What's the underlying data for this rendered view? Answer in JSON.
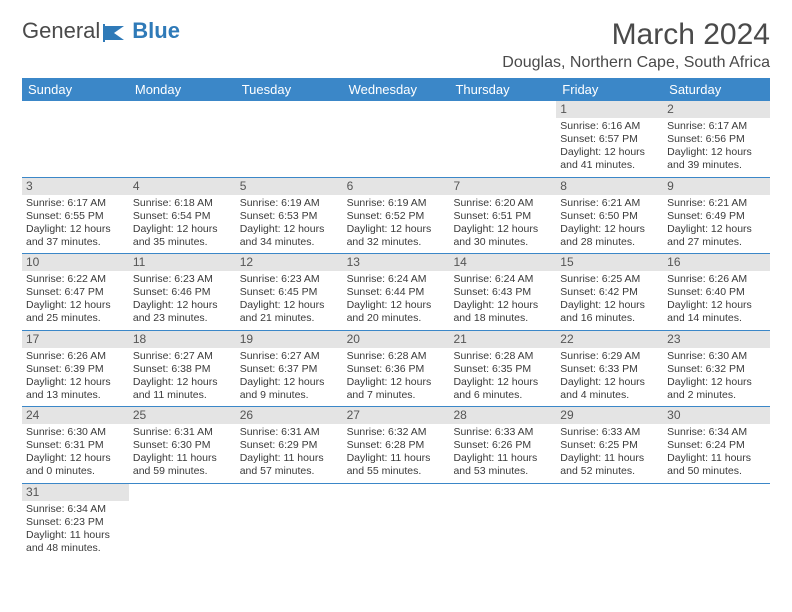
{
  "logo": {
    "text1": "General",
    "text2": "Blue"
  },
  "title": "March 2024",
  "location": "Douglas, Northern Cape, South Africa",
  "colors": {
    "header_bg": "#3b87c8",
    "header_text": "#ffffff",
    "daybar_bg": "#e4e4e4",
    "row_border": "#3b87c8"
  },
  "weekdays": [
    "Sunday",
    "Monday",
    "Tuesday",
    "Wednesday",
    "Thursday",
    "Friday",
    "Saturday"
  ],
  "weeks": [
    [
      null,
      null,
      null,
      null,
      null,
      {
        "n": "1",
        "sr": "Sunrise: 6:16 AM",
        "ss": "Sunset: 6:57 PM",
        "dl": "Daylight: 12 hours and 41 minutes."
      },
      {
        "n": "2",
        "sr": "Sunrise: 6:17 AM",
        "ss": "Sunset: 6:56 PM",
        "dl": "Daylight: 12 hours and 39 minutes."
      }
    ],
    [
      {
        "n": "3",
        "sr": "Sunrise: 6:17 AM",
        "ss": "Sunset: 6:55 PM",
        "dl": "Daylight: 12 hours and 37 minutes."
      },
      {
        "n": "4",
        "sr": "Sunrise: 6:18 AM",
        "ss": "Sunset: 6:54 PM",
        "dl": "Daylight: 12 hours and 35 minutes."
      },
      {
        "n": "5",
        "sr": "Sunrise: 6:19 AM",
        "ss": "Sunset: 6:53 PM",
        "dl": "Daylight: 12 hours and 34 minutes."
      },
      {
        "n": "6",
        "sr": "Sunrise: 6:19 AM",
        "ss": "Sunset: 6:52 PM",
        "dl": "Daylight: 12 hours and 32 minutes."
      },
      {
        "n": "7",
        "sr": "Sunrise: 6:20 AM",
        "ss": "Sunset: 6:51 PM",
        "dl": "Daylight: 12 hours and 30 minutes."
      },
      {
        "n": "8",
        "sr": "Sunrise: 6:21 AM",
        "ss": "Sunset: 6:50 PM",
        "dl": "Daylight: 12 hours and 28 minutes."
      },
      {
        "n": "9",
        "sr": "Sunrise: 6:21 AM",
        "ss": "Sunset: 6:49 PM",
        "dl": "Daylight: 12 hours and 27 minutes."
      }
    ],
    [
      {
        "n": "10",
        "sr": "Sunrise: 6:22 AM",
        "ss": "Sunset: 6:47 PM",
        "dl": "Daylight: 12 hours and 25 minutes."
      },
      {
        "n": "11",
        "sr": "Sunrise: 6:23 AM",
        "ss": "Sunset: 6:46 PM",
        "dl": "Daylight: 12 hours and 23 minutes."
      },
      {
        "n": "12",
        "sr": "Sunrise: 6:23 AM",
        "ss": "Sunset: 6:45 PM",
        "dl": "Daylight: 12 hours and 21 minutes."
      },
      {
        "n": "13",
        "sr": "Sunrise: 6:24 AM",
        "ss": "Sunset: 6:44 PM",
        "dl": "Daylight: 12 hours and 20 minutes."
      },
      {
        "n": "14",
        "sr": "Sunrise: 6:24 AM",
        "ss": "Sunset: 6:43 PM",
        "dl": "Daylight: 12 hours and 18 minutes."
      },
      {
        "n": "15",
        "sr": "Sunrise: 6:25 AM",
        "ss": "Sunset: 6:42 PM",
        "dl": "Daylight: 12 hours and 16 minutes."
      },
      {
        "n": "16",
        "sr": "Sunrise: 6:26 AM",
        "ss": "Sunset: 6:40 PM",
        "dl": "Daylight: 12 hours and 14 minutes."
      }
    ],
    [
      {
        "n": "17",
        "sr": "Sunrise: 6:26 AM",
        "ss": "Sunset: 6:39 PM",
        "dl": "Daylight: 12 hours and 13 minutes."
      },
      {
        "n": "18",
        "sr": "Sunrise: 6:27 AM",
        "ss": "Sunset: 6:38 PM",
        "dl": "Daylight: 12 hours and 11 minutes."
      },
      {
        "n": "19",
        "sr": "Sunrise: 6:27 AM",
        "ss": "Sunset: 6:37 PM",
        "dl": "Daylight: 12 hours and 9 minutes."
      },
      {
        "n": "20",
        "sr": "Sunrise: 6:28 AM",
        "ss": "Sunset: 6:36 PM",
        "dl": "Daylight: 12 hours and 7 minutes."
      },
      {
        "n": "21",
        "sr": "Sunrise: 6:28 AM",
        "ss": "Sunset: 6:35 PM",
        "dl": "Daylight: 12 hours and 6 minutes."
      },
      {
        "n": "22",
        "sr": "Sunrise: 6:29 AM",
        "ss": "Sunset: 6:33 PM",
        "dl": "Daylight: 12 hours and 4 minutes."
      },
      {
        "n": "23",
        "sr": "Sunrise: 6:30 AM",
        "ss": "Sunset: 6:32 PM",
        "dl": "Daylight: 12 hours and 2 minutes."
      }
    ],
    [
      {
        "n": "24",
        "sr": "Sunrise: 6:30 AM",
        "ss": "Sunset: 6:31 PM",
        "dl": "Daylight: 12 hours and 0 minutes."
      },
      {
        "n": "25",
        "sr": "Sunrise: 6:31 AM",
        "ss": "Sunset: 6:30 PM",
        "dl": "Daylight: 11 hours and 59 minutes."
      },
      {
        "n": "26",
        "sr": "Sunrise: 6:31 AM",
        "ss": "Sunset: 6:29 PM",
        "dl": "Daylight: 11 hours and 57 minutes."
      },
      {
        "n": "27",
        "sr": "Sunrise: 6:32 AM",
        "ss": "Sunset: 6:28 PM",
        "dl": "Daylight: 11 hours and 55 minutes."
      },
      {
        "n": "28",
        "sr": "Sunrise: 6:33 AM",
        "ss": "Sunset: 6:26 PM",
        "dl": "Daylight: 11 hours and 53 minutes."
      },
      {
        "n": "29",
        "sr": "Sunrise: 6:33 AM",
        "ss": "Sunset: 6:25 PM",
        "dl": "Daylight: 11 hours and 52 minutes."
      },
      {
        "n": "30",
        "sr": "Sunrise: 6:34 AM",
        "ss": "Sunset: 6:24 PM",
        "dl": "Daylight: 11 hours and 50 minutes."
      }
    ],
    [
      {
        "n": "31",
        "sr": "Sunrise: 6:34 AM",
        "ss": "Sunset: 6:23 PM",
        "dl": "Daylight: 11 hours and 48 minutes."
      },
      null,
      null,
      null,
      null,
      null,
      null
    ]
  ]
}
